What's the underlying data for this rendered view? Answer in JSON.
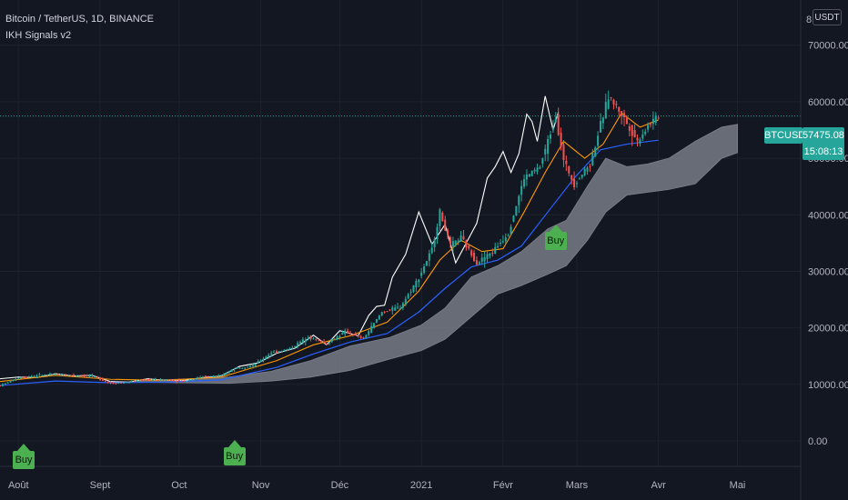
{
  "legend": {
    "symbol": "Bitcoin / TetherUS, 1D, BINANCE",
    "indicator": "IKH Signals v2"
  },
  "scale_mark": "8",
  "unit": "USDT",
  "current_price": {
    "symbol": "BTCUSDT",
    "value": "57475.08",
    "countdown": "15:08:13"
  },
  "signals": [
    {
      "label": "Buy",
      "date": "2020-08-03",
      "price": -800
    },
    {
      "label": "Buy",
      "date": "2020-10-22",
      "price": -200
    },
    {
      "label": "Buy",
      "date": "2021-02-21",
      "price": 38000
    }
  ],
  "colors": {
    "background": "#131722",
    "grid": "#1e222d",
    "up": "#26a69a",
    "down": "#ef5350",
    "lagging": "#ffffff",
    "conversion": "#ff9800",
    "base": "#2962ff",
    "cloud": "#787b86",
    "signal": "#4caf50"
  },
  "chart_data": {
    "type": "line",
    "title": "Bitcoin / TetherUS, 1D, BINANCE",
    "x_range": [
      "2020-07-25",
      "2021-05-25"
    ],
    "ylim": [
      -4500,
      78000
    ],
    "grid": true,
    "y_ticks": [
      0,
      10000,
      20000,
      30000,
      40000,
      50000,
      60000,
      70000
    ],
    "y_tick_labels": [
      "0.00",
      "10000.00",
      "20000.00",
      "30000.00",
      "40000.00",
      "50000.00",
      "60000.00",
      "70000.00"
    ],
    "x_ticks": [
      "2020-08-01",
      "2020-09-01",
      "2020-10-01",
      "2020-11-01",
      "2020-12-01",
      "2021-01-01",
      "2021-02-01",
      "2021-03-01",
      "2021-04-01",
      "2021-05-01"
    ],
    "x_tick_labels": [
      "Août",
      "Sept",
      "Oct",
      "Nov",
      "Déc",
      "2021",
      "Févr",
      "Mars",
      "Avr",
      "Mai"
    ],
    "price_series": {
      "dates": [
        "2020-07-25",
        "2020-08-01",
        "2020-08-08",
        "2020-08-15",
        "2020-08-22",
        "2020-08-29",
        "2020-09-05",
        "2020-09-12",
        "2020-09-19",
        "2020-09-26",
        "2020-10-03",
        "2020-10-10",
        "2020-10-17",
        "2020-10-22",
        "2020-10-29",
        "2020-11-05",
        "2020-11-12",
        "2020-11-19",
        "2020-11-26",
        "2020-12-03",
        "2020-12-10",
        "2020-12-17",
        "2020-12-24",
        "2020-12-31",
        "2021-01-05",
        "2021-01-08",
        "2021-01-12",
        "2021-01-16",
        "2021-01-22",
        "2021-01-28",
        "2021-02-03",
        "2021-02-09",
        "2021-02-15",
        "2021-02-21",
        "2021-02-24",
        "2021-02-28",
        "2021-03-06",
        "2021-03-13",
        "2021-03-18",
        "2021-03-24",
        "2021-03-28",
        "2021-04-01"
      ],
      "values": [
        9800,
        11200,
        11600,
        11800,
        11600,
        11500,
        10200,
        10400,
        10900,
        10800,
        10600,
        11400,
        11500,
        12900,
        13300,
        15600,
        16300,
        18400,
        17200,
        19300,
        18100,
        22800,
        23700,
        28900,
        33900,
        40500,
        34500,
        36000,
        31500,
        33500,
        36800,
        46500,
        48500,
        57500,
        49500,
        45500,
        49000,
        61000,
        57800,
        53000,
        55800,
        57475
      ]
    },
    "series": [
      {
        "key": "lagging",
        "dates": [
          "2020-07-25",
          "2020-08-01",
          "2020-08-08",
          "2020-08-15",
          "2020-08-22",
          "2020-08-29",
          "2020-09-05",
          "2020-09-12",
          "2020-09-19",
          "2020-09-26",
          "2020-10-03",
          "2020-10-10",
          "2020-10-17",
          "2020-10-24",
          "2020-10-31",
          "2020-11-07",
          "2020-11-14",
          "2020-11-21",
          "2020-11-26",
          "2020-12-01",
          "2020-12-05",
          "2020-12-08",
          "2020-12-12",
          "2020-12-15",
          "2020-12-18",
          "2020-12-21",
          "2020-12-26",
          "2020-12-31",
          "2021-01-05",
          "2021-01-10",
          "2021-01-14",
          "2021-01-18",
          "2021-01-22",
          "2021-01-26",
          "2021-01-29",
          "2021-02-01",
          "2021-02-04",
          "2021-02-07",
          "2021-02-10",
          "2021-02-12",
          "2021-02-14",
          "2021-02-17",
          "2021-02-20",
          "2021-02-22"
        ],
        "values": [
          11000,
          11300,
          11200,
          11900,
          11500,
          11600,
          10500,
          10400,
          11000,
          10700,
          10700,
          11200,
          11500,
          13200,
          13800,
          15500,
          16400,
          18700,
          17000,
          19500,
          19000,
          18600,
          22200,
          23800,
          24000,
          29000,
          33000,
          40500,
          34800,
          38300,
          31500,
          35000,
          38500,
          46500,
          48500,
          51200,
          47500,
          50800,
          57800,
          56500,
          53000,
          61000,
          55000,
          58200
        ]
      },
      {
        "key": "conversion",
        "dates": [
          "2020-07-25",
          "2020-08-15",
          "2020-09-05",
          "2020-09-26",
          "2020-10-17",
          "2020-11-07",
          "2020-11-21",
          "2020-12-05",
          "2020-12-19",
          "2020-12-31",
          "2021-01-08",
          "2021-01-16",
          "2021-01-24",
          "2021-02-01",
          "2021-02-09",
          "2021-02-17",
          "2021-02-24",
          "2021-03-04",
          "2021-03-11",
          "2021-03-18",
          "2021-03-25",
          "2021-04-01"
        ],
        "values": [
          10500,
          11600,
          10900,
          10700,
          11300,
          14200,
          17000,
          18600,
          21000,
          26500,
          32000,
          35500,
          33500,
          34000,
          40500,
          47500,
          53000,
          50000,
          52500,
          58000,
          55500,
          56800
        ]
      },
      {
        "key": "base",
        "dates": [
          "2020-07-25",
          "2020-08-15",
          "2020-09-05",
          "2020-09-26",
          "2020-10-17",
          "2020-11-07",
          "2020-11-21",
          "2020-12-05",
          "2020-12-19",
          "2020-12-31",
          "2021-01-10",
          "2021-01-20",
          "2021-01-30",
          "2021-02-08",
          "2021-02-18",
          "2021-02-28",
          "2021-03-10",
          "2021-03-20",
          "2021-04-01"
        ],
        "values": [
          9800,
          10600,
          10300,
          10400,
          10800,
          13000,
          15400,
          17500,
          19000,
          22800,
          27000,
          30800,
          32000,
          34500,
          40500,
          46500,
          51500,
          52500,
          53200
        ]
      }
    ],
    "cloud": {
      "dates": [
        "2020-09-15",
        "2020-10-01",
        "2020-10-20",
        "2020-11-05",
        "2020-11-20",
        "2020-12-05",
        "2020-12-20",
        "2021-01-01",
        "2021-01-10",
        "2021-01-20",
        "2021-01-30",
        "2021-02-08",
        "2021-02-18",
        "2021-02-25",
        "2021-03-05",
        "2021-03-12",
        "2021-03-20",
        "2021-03-28",
        "2021-04-05",
        "2021-04-15",
        "2021-04-25",
        "2021-05-01"
      ],
      "span_a": [
        10700,
        10900,
        11300,
        12300,
        14200,
        16800,
        18300,
        20500,
        23500,
        29000,
        31000,
        33500,
        37500,
        39000,
        45000,
        50000,
        48500,
        49000,
        50000,
        53000,
        55500,
        56000
      ],
      "span_b": [
        10400,
        10300,
        10200,
        10600,
        11300,
        12500,
        14500,
        16000,
        18000,
        22000,
        26000,
        27500,
        29500,
        31000,
        35500,
        40500,
        43500,
        44000,
        44500,
        45500,
        50000,
        51000
      ]
    }
  }
}
